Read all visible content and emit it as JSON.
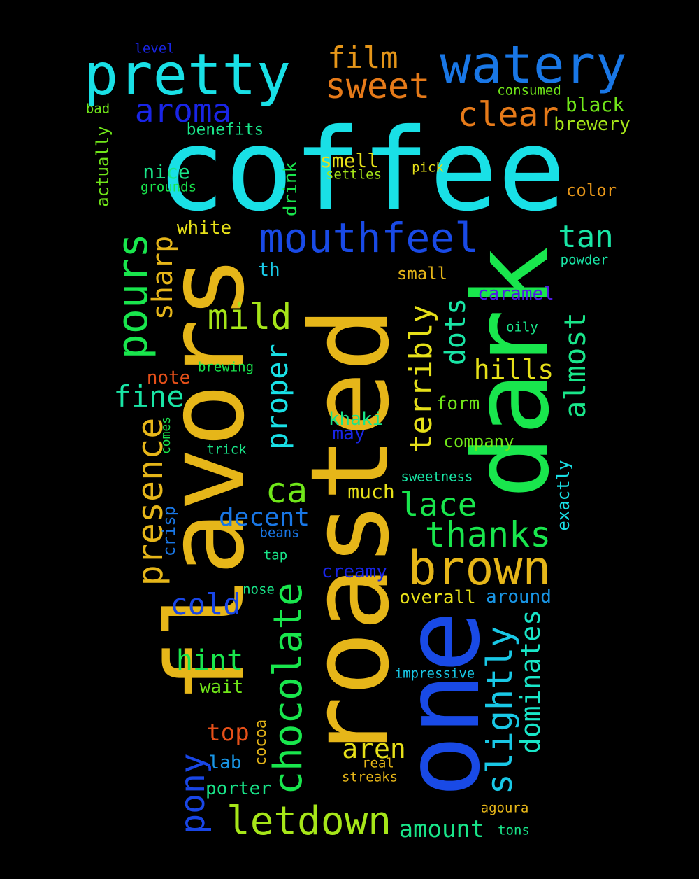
{
  "wordcloud": {
    "background": "#000000",
    "words": [
      {
        "text": "coffee",
        "color": "#19e0e6"
      },
      {
        "text": "roasted",
        "color": "#e6b619"
      },
      {
        "text": "flavors",
        "color": "#e6b619"
      },
      {
        "text": "dark",
        "color": "#19e64d"
      },
      {
        "text": "one",
        "color": "#194ae6"
      },
      {
        "text": "pretty",
        "color": "#19e0e6"
      },
      {
        "text": "watery",
        "color": "#1977e6"
      },
      {
        "text": "brown",
        "color": "#e6b619"
      },
      {
        "text": "mouthfeel",
        "color": "#194ae6"
      },
      {
        "text": "chocolate",
        "color": "#19e64d"
      },
      {
        "text": "letdown",
        "color": "#a6e619"
      },
      {
        "text": "pours",
        "color": "#19e64d"
      },
      {
        "text": "presence",
        "color": "#e6b619"
      },
      {
        "text": "slightly",
        "color": "#19c8e6"
      },
      {
        "text": "sweet",
        "color": "#e67a19"
      },
      {
        "text": "film",
        "color": "#e69619"
      },
      {
        "text": "aroma",
        "color": "#1925e6"
      },
      {
        "text": "clear",
        "color": "#e67a19"
      },
      {
        "text": "thanks",
        "color": "#19e64d"
      },
      {
        "text": "lace",
        "color": "#19e64d"
      },
      {
        "text": "mild",
        "color": "#a6e619"
      },
      {
        "text": "terribly",
        "color": "#e6e019"
      },
      {
        "text": "almost",
        "color": "#19e68a"
      },
      {
        "text": "tan",
        "color": "#19e6a6"
      },
      {
        "text": "dominates",
        "color": "#19e6c8"
      },
      {
        "text": "ca",
        "color": "#70e619"
      },
      {
        "text": "proper",
        "color": "#19e0e6"
      },
      {
        "text": "sharp",
        "color": "#e6b619"
      },
      {
        "text": "fine",
        "color": "#19e6a6"
      },
      {
        "text": "decent",
        "color": "#1977e6"
      },
      {
        "text": "cold",
        "color": "#1946e6"
      },
      {
        "text": "hint",
        "color": "#19e64d"
      },
      {
        "text": "pony",
        "color": "#1946e6"
      },
      {
        "text": "dots",
        "color": "#19e6a6"
      },
      {
        "text": "hills",
        "color": "#e6e019"
      },
      {
        "text": "aren",
        "color": "#e6e019"
      },
      {
        "text": "top",
        "color": "#e65019"
      },
      {
        "text": "amount",
        "color": "#19e68a"
      },
      {
        "text": "black",
        "color": "#70e619"
      },
      {
        "text": "brewery",
        "color": "#a6e619"
      },
      {
        "text": "actually",
        "color": "#70e619"
      },
      {
        "text": "benefits",
        "color": "#19e68a"
      },
      {
        "text": "nice",
        "color": "#19e68a"
      },
      {
        "text": "smell",
        "color": "#e6e019"
      },
      {
        "text": "drink",
        "color": "#19e64d"
      },
      {
        "text": "color",
        "color": "#e69619"
      },
      {
        "text": "white",
        "color": "#e6e019"
      },
      {
        "text": "caramel",
        "color": "#5019e6"
      },
      {
        "text": "small",
        "color": "#e6b619"
      },
      {
        "text": "overall",
        "color": "#e6e019"
      },
      {
        "text": "around",
        "color": "#1996e6"
      },
      {
        "text": "much",
        "color": "#e6e019"
      },
      {
        "text": "creamy",
        "color": "#1925e6"
      },
      {
        "text": "khaki",
        "color": "#19e68a"
      },
      {
        "text": "company",
        "color": "#70e619"
      },
      {
        "text": "form",
        "color": "#70e619"
      },
      {
        "text": "porter",
        "color": "#19e68a"
      },
      {
        "text": "wait",
        "color": "#70e619"
      },
      {
        "text": "exactly",
        "color": "#19e0e6"
      },
      {
        "text": "note",
        "color": "#e65019"
      },
      {
        "text": "may",
        "color": "#1925e6"
      },
      {
        "text": "cocoa",
        "color": "#e6b619"
      },
      {
        "text": "crisp",
        "color": "#1977e6"
      },
      {
        "text": "lab",
        "color": "#1996e6"
      },
      {
        "text": "th",
        "color": "#19c8e6"
      },
      {
        "text": "level",
        "color": "#1925e6"
      },
      {
        "text": "bad",
        "color": "#70e619"
      },
      {
        "text": "consumed",
        "color": "#70e619"
      },
      {
        "text": "settles",
        "color": "#a6e619"
      },
      {
        "text": "pick",
        "color": "#e6e019"
      },
      {
        "text": "grounds",
        "color": "#19e64d"
      },
      {
        "text": "powder",
        "color": "#19e6a6"
      },
      {
        "text": "oily",
        "color": "#19e68a"
      },
      {
        "text": "brewing",
        "color": "#19e64d"
      },
      {
        "text": "comes",
        "color": "#19e64d"
      },
      {
        "text": "trick",
        "color": "#19e68a"
      },
      {
        "text": "sweetness",
        "color": "#19e6a6"
      },
      {
        "text": "beans",
        "color": "#1977e6"
      },
      {
        "text": "tap",
        "color": "#19e68a"
      },
      {
        "text": "nose",
        "color": "#19e68a"
      },
      {
        "text": "impressive",
        "color": "#19c8e6"
      },
      {
        "text": "real",
        "color": "#e6b619"
      },
      {
        "text": "streaks",
        "color": "#e6b619"
      },
      {
        "text": "agoura",
        "color": "#e6b619"
      },
      {
        "text": "tons",
        "color": "#19e68a"
      }
    ]
  }
}
